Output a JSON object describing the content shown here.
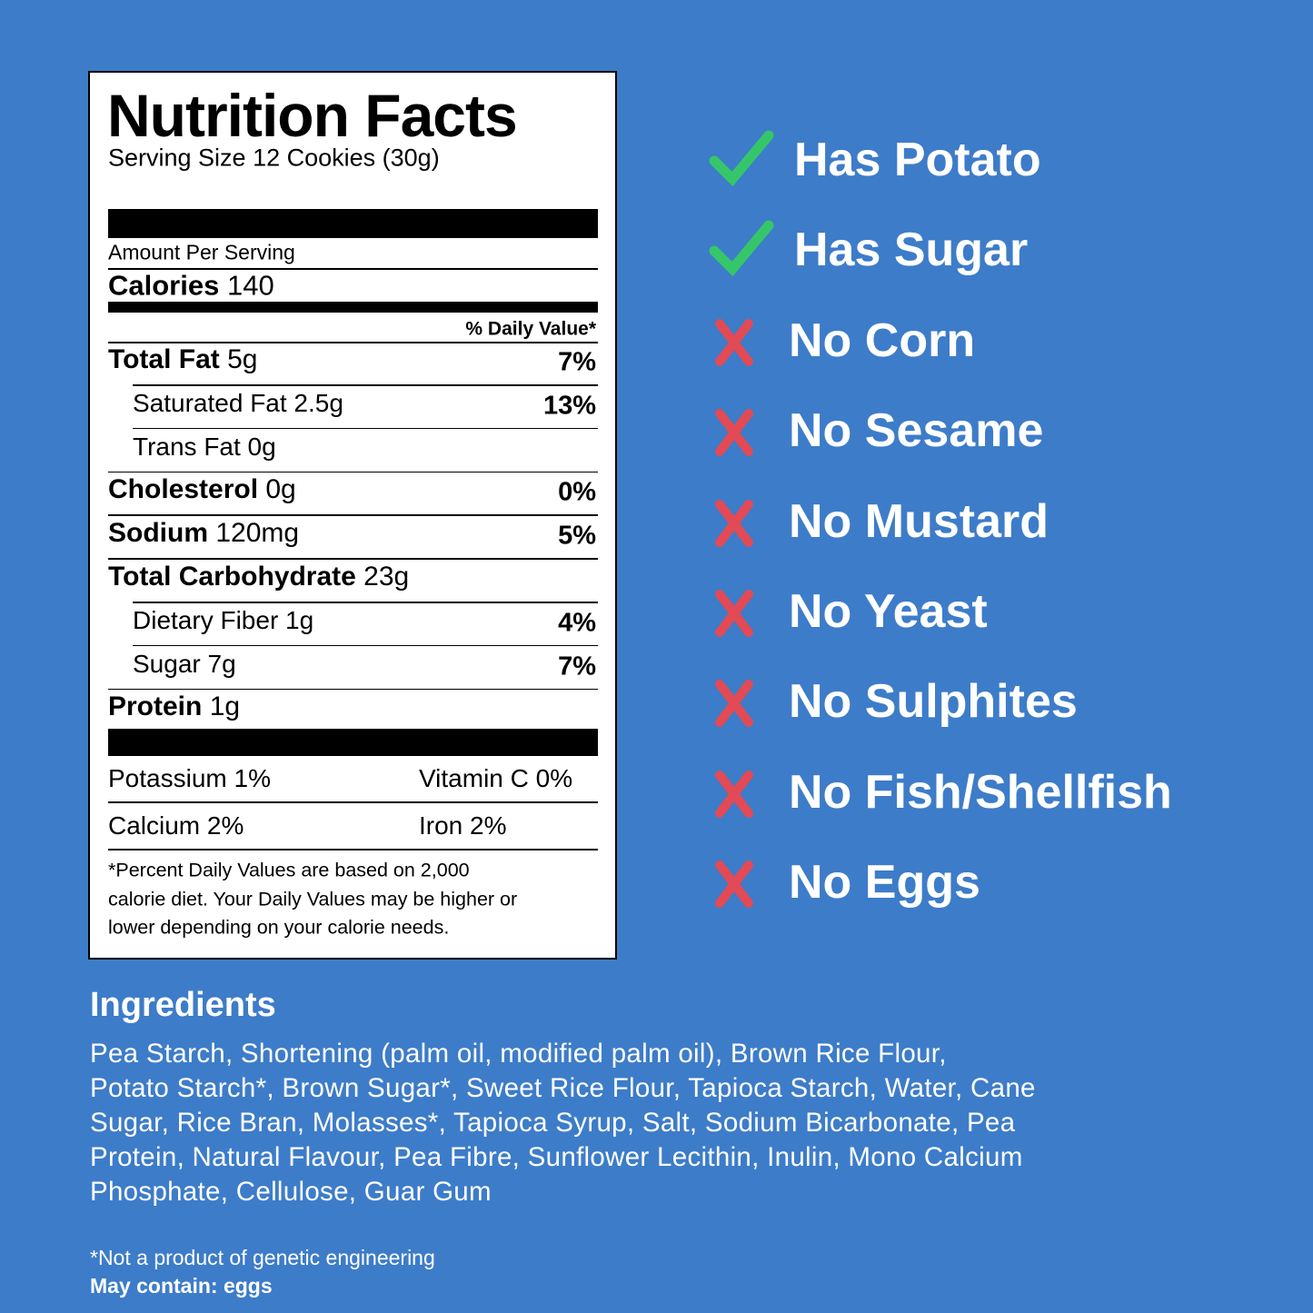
{
  "label": {
    "title": "Nutrition Facts",
    "serving": "Serving Size 12 Cookies (30g)",
    "amount_per_serving": "Amount Per Serving",
    "calories_label": "Calories",
    "calories": 140,
    "daily_value_header": "% Daily Value*",
    "rows": [
      {
        "name": "Total Fat",
        "amount": "5g",
        "dv": "7%",
        "bold": true
      },
      {
        "name": "Saturated Fat",
        "amount": "2.5g",
        "dv": "13%",
        "bold": false
      },
      {
        "name": "Trans Fat",
        "amount": "0g",
        "bold": false
      },
      {
        "name": "Cholesterol",
        "amount": "0g",
        "dv": "0%",
        "bold": true
      },
      {
        "name": "Sodium",
        "amount": "120mg",
        "dv": "5%",
        "bold": true
      },
      {
        "name": "Total Carbohydrate",
        "amount": "23g",
        "bold": true
      },
      {
        "name": "Dietary Fiber",
        "amount": "1g",
        "dv": "4%",
        "bold": false
      },
      {
        "name": "Sugar",
        "amount": "7g",
        "dv": "7%",
        "bold": false
      },
      {
        "name": "Protein",
        "amount": "1g",
        "bold": true
      }
    ],
    "minerals": [
      [
        "Potassium 1%",
        "Vitamin C 0%"
      ],
      [
        "Calcium 2%",
        "Iron 2%"
      ]
    ],
    "footnote": [
      "*Percent Daily Values are based on 2,000",
      "calorie diet. Your Daily Values may be higher or",
      "lower depending on your calorie needs."
    ]
  },
  "claims": [
    {
      "text": "Has Potato",
      "icon": "check"
    },
    {
      "text": "Has Sugar",
      "icon": "check"
    },
    {
      "text": "No Corn",
      "icon": "cross"
    },
    {
      "text": "No Sesame",
      "icon": "cross"
    },
    {
      "text": "No Mustard",
      "icon": "cross"
    },
    {
      "text": "No Yeast",
      "icon": "cross"
    },
    {
      "text": "No Sulphites",
      "icon": "cross"
    },
    {
      "text": "No Fish/Shellfish",
      "icon": "cross"
    },
    {
      "text": "No Eggs",
      "icon": "cross"
    }
  ],
  "ingredients": {
    "title": "Ingredients",
    "lines": [
      "Pea Starch, Shortening (palm oil, modified palm oil), Brown Rice Flour,",
      "Potato Starch*, Brown Sugar*, Sweet Rice Flour, Tapioca Starch, Water, Cane",
      "Sugar, Rice Bran, Molasses*, Tapioca Syrup, Salt, Sodium Bicarbonate, Pea",
      "Protein, Natural Flavour, Pea Fibre, Sunflower Lecithin, Inulin, Mono Calcium",
      "Phosphate, Cellulose, Guar Gum"
    ]
  },
  "notes": [
    "*Not a product of genetic engineering",
    "May contain: eggs"
  ]
}
